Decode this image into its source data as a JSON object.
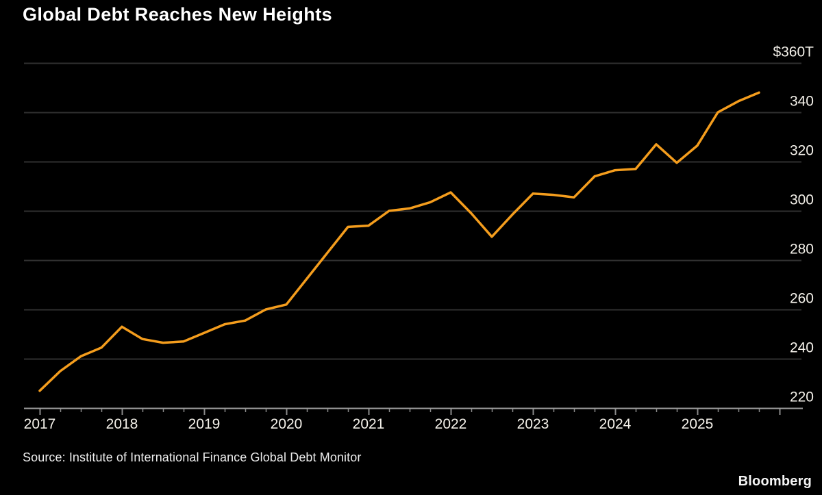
{
  "title": "Global Debt Reaches New Heights",
  "source": "Source: Institute of International Finance Global Debt Monitor",
  "brand": "Bloomberg",
  "colors": {
    "background": "#000000",
    "line": "#F49D1D",
    "gridline": "#303030",
    "axis": "#9b9b9b",
    "tick": "#8a8a8a",
    "axis_text": "#f4f1ea",
    "title_text": "#ffffff"
  },
  "chart_data": {
    "type": "line",
    "title": "Global Debt Reaches New Heights",
    "unit": "USD trillions",
    "series_name": "Global debt",
    "x": [
      "2017 Q1",
      "2017 Q2",
      "2017 Q3",
      "2017 Q4",
      "2018 Q1",
      "2018 Q2",
      "2018 Q3",
      "2018 Q4",
      "2019 Q1",
      "2019 Q2",
      "2019 Q3",
      "2019 Q4",
      "2020 Q1",
      "2020 Q2",
      "2020 Q3",
      "2020 Q4",
      "2021 Q1",
      "2021 Q2",
      "2021 Q3",
      "2021 Q4",
      "2022 Q1",
      "2022 Q2",
      "2022 Q3",
      "2022 Q4",
      "2023 Q1",
      "2023 Q2",
      "2023 Q3",
      "2023 Q4",
      "2024 Q1",
      "2024 Q2",
      "2024 Q3",
      "2024 Q4",
      "2025 Q1",
      "2025 Q2",
      "2025 Q3",
      "2025 Q4"
    ],
    "values": [
      227,
      235,
      241,
      244.5,
      253,
      248,
      246.5,
      247,
      250.5,
      254,
      255.5,
      260,
      262,
      272.5,
      283,
      293.5,
      294,
      300,
      301,
      303.5,
      307.5,
      299,
      289.5,
      298.5,
      307,
      306.5,
      305.5,
      314,
      316.5,
      317,
      327,
      319.5,
      326.5,
      340,
      344.5,
      348
    ],
    "xtick_labels": [
      "2017",
      "2018",
      "2019",
      "2020",
      "2021",
      "2022",
      "2023",
      "2024",
      "2025"
    ],
    "ytick_values": [
      360,
      340,
      320,
      300,
      280,
      260,
      240,
      220
    ],
    "ytick_labels": [
      "$360T",
      "340",
      "320",
      "300",
      "280",
      "260",
      "240",
      "220"
    ],
    "ylim": [
      220,
      360
    ],
    "grid": "horizontal",
    "legend": "none",
    "y_axis_side": "right"
  }
}
